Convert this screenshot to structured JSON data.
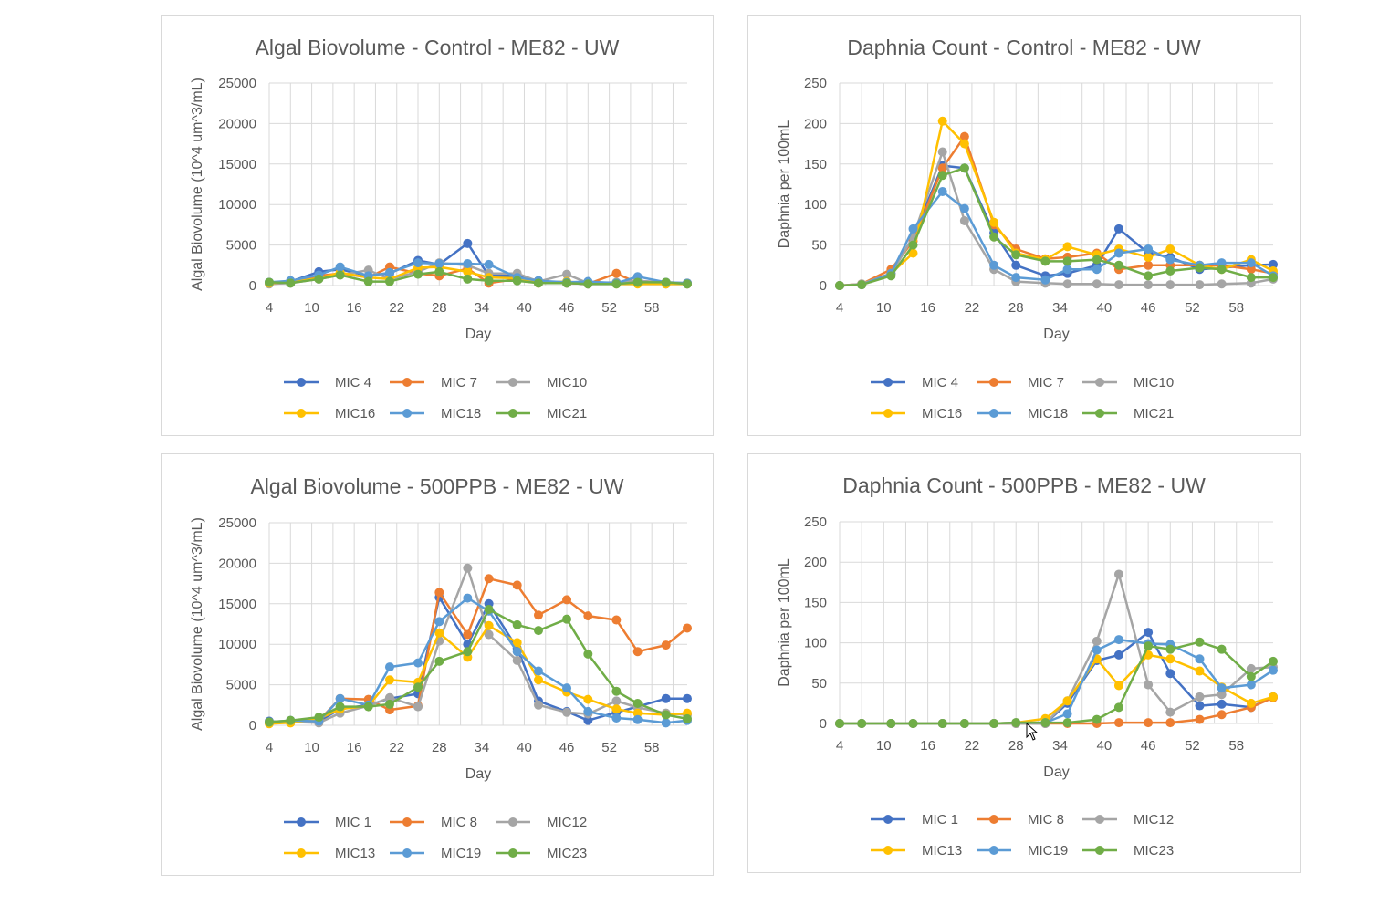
{
  "chart_data": [
    {
      "type": "line",
      "title": "Algal Biovolume - Control - ME82 - UW",
      "xlabel": "Day",
      "ylabel": "Algal Biovolume (10^4 um^3/mL)",
      "xlim": [
        4,
        63
      ],
      "ylim": [
        0,
        25000
      ],
      "yticks": [
        0,
        5000,
        10000,
        15000,
        20000,
        25000
      ],
      "xticks": [
        4,
        10,
        16,
        22,
        28,
        34,
        40,
        46,
        52,
        58
      ],
      "x": [
        4,
        7,
        11,
        14,
        18,
        21,
        25,
        28,
        32,
        35,
        39,
        42,
        46,
        49,
        53,
        56,
        60,
        63
      ],
      "grid": true,
      "legend_position": "bottom",
      "series": [
        {
          "name": "MIC 4",
          "color": "#4472C4",
          "values": [
            400,
            500,
            1700,
            2000,
            1200,
            1500,
            3100,
            2600,
            5200,
            1200,
            1200,
            600,
            300,
            200,
            300,
            300,
            200,
            200
          ]
        },
        {
          "name": "MIC 7",
          "color": "#ED7D31",
          "values": [
            300,
            400,
            1200,
            1500,
            1000,
            2300,
            1500,
            1200,
            2100,
            300,
            800,
            300,
            300,
            200,
            1500,
            300,
            300,
            300
          ]
        },
        {
          "name": "MIC10",
          "color": "#A5A5A5",
          "values": [
            200,
            300,
            800,
            1300,
            1900,
            800,
            1700,
            2800,
            2500,
            1500,
            1500,
            500,
            1400,
            300,
            400,
            600,
            400,
            300
          ]
        },
        {
          "name": "MIC16",
          "color": "#FFC000",
          "values": [
            300,
            400,
            900,
            1600,
            1000,
            800,
            2200,
            2300,
            1700,
            1000,
            900,
            400,
            500,
            300,
            200,
            200,
            200,
            200
          ]
        },
        {
          "name": "MIC18",
          "color": "#5B9BD5",
          "values": [
            400,
            600,
            1300,
            2300,
            1200,
            1600,
            2800,
            2700,
            2700,
            2600,
            1000,
            600,
            400,
            500,
            300,
            1100,
            400,
            300
          ]
        },
        {
          "name": "MIC21",
          "color": "#70AD47",
          "values": [
            400,
            300,
            800,
            1300,
            500,
            500,
            1400,
            1700,
            800,
            600,
            600,
            300,
            300,
            200,
            200,
            400,
            400,
            200
          ]
        }
      ]
    },
    {
      "type": "line",
      "title": "Daphnia Count - Control - ME82 - UW",
      "xlabel": "Day",
      "ylabel": "Daphnia per 100mL",
      "xlim": [
        4,
        63
      ],
      "ylim": [
        0,
        250
      ],
      "yticks": [
        0,
        50,
        100,
        150,
        200,
        250
      ],
      "xticks": [
        4,
        10,
        16,
        22,
        28,
        34,
        40,
        46,
        52,
        58
      ],
      "x": [
        4,
        7,
        11,
        14,
        18,
        21,
        25,
        28,
        32,
        35,
        39,
        42,
        46,
        49,
        53,
        56,
        60,
        63
      ],
      "grid": true,
      "legend_position": "bottom",
      "series": [
        {
          "name": "MIC 4",
          "color": "#4472C4",
          "values": [
            0,
            1,
            15,
            60,
            148,
            145,
            65,
            25,
            12,
            15,
            25,
            70,
            40,
            35,
            20,
            22,
            25,
            26
          ]
        },
        {
          "name": "MIC 7",
          "color": "#ED7D31",
          "values": [
            0,
            2,
            20,
            55,
            145,
            184,
            75,
            45,
            33,
            35,
            40,
            20,
            25,
            25,
            25,
            25,
            20,
            15
          ]
        },
        {
          "name": "MIC10",
          "color": "#A5A5A5",
          "values": [
            0,
            2,
            15,
            60,
            165,
            80,
            20,
            5,
            3,
            2,
            2,
            1,
            1,
            1,
            1,
            2,
            3,
            8
          ]
        },
        {
          "name": "MIC16",
          "color": "#FFC000",
          "values": [
            0,
            1,
            15,
            40,
            203,
            175,
            78,
            40,
            32,
            48,
            38,
            45,
            35,
            45,
            25,
            20,
            32,
            18
          ]
        },
        {
          "name": "MIC18",
          "color": "#5B9BD5",
          "values": [
            0,
            1,
            15,
            70,
            116,
            95,
            25,
            10,
            7,
            20,
            20,
            40,
            45,
            32,
            25,
            28,
            28,
            12
          ]
        },
        {
          "name": "MIC21",
          "color": "#70AD47",
          "values": [
            0,
            1,
            12,
            50,
            136,
            145,
            60,
            38,
            30,
            30,
            32,
            25,
            12,
            18,
            22,
            20,
            10,
            10
          ]
        }
      ]
    },
    {
      "type": "line",
      "title": "Algal Biovolume - 500PPB - ME82  - UW",
      "xlabel": "Day",
      "ylabel": "Algal Biovolume (10^4 um^3/mL)",
      "xlim": [
        4,
        63
      ],
      "ylim": [
        0,
        25000
      ],
      "yticks": [
        0,
        5000,
        10000,
        15000,
        20000,
        25000
      ],
      "xticks": [
        4,
        10,
        16,
        22,
        28,
        34,
        40,
        46,
        52,
        58
      ],
      "x": [
        4,
        7,
        11,
        14,
        18,
        21,
        25,
        28,
        32,
        35,
        39,
        42,
        46,
        49,
        53,
        56,
        60,
        63
      ],
      "grid": true,
      "legend_position": "bottom",
      "series": [
        {
          "name": "MIC 1",
          "color": "#4472C4",
          "values": [
            500,
            400,
            500,
            2000,
            2500,
            3300,
            3900,
            15800,
            10000,
            15000,
            9500,
            3000,
            1700,
            600,
            1600,
            2300,
            3300,
            3300
          ]
        },
        {
          "name": "MIC 8",
          "color": "#ED7D31",
          "values": [
            300,
            400,
            600,
            3300,
            3200,
            1900,
            2400,
            16400,
            11200,
            18100,
            17300,
            13600,
            15500,
            13500,
            13000,
            9100,
            9900,
            12000
          ]
        },
        {
          "name": "MIC12",
          "color": "#A5A5A5",
          "values": [
            400,
            400,
            300,
            1500,
            2400,
            3400,
            2300,
            10400,
            19400,
            11200,
            8000,
            2500,
            1600,
            1400,
            3000,
            2200,
            1500,
            1300
          ]
        },
        {
          "name": "MIC13",
          "color": "#FFC000",
          "values": [
            200,
            300,
            800,
            2000,
            2400,
            5600,
            5300,
            11400,
            8400,
            12300,
            10200,
            5600,
            4100,
            3200,
            2000,
            1500,
            1300,
            1500
          ]
        },
        {
          "name": "MIC19",
          "color": "#5B9BD5",
          "values": [
            400,
            600,
            500,
            3300,
            2500,
            7200,
            7700,
            12800,
            15700,
            14100,
            9100,
            6700,
            4600,
            1700,
            900,
            700,
            300,
            600
          ]
        },
        {
          "name": "MIC23",
          "color": "#70AD47",
          "values": [
            400,
            600,
            1000,
            2300,
            2300,
            2600,
            4700,
            7900,
            9100,
            14300,
            12400,
            11700,
            13100,
            8800,
            4200,
            2700,
            1300,
            800
          ]
        }
      ]
    },
    {
      "type": "line",
      "title": "Daphnia Count - 500PPB - ME82 - UW",
      "xlabel": "Day",
      "ylabel": "Daphnia per 100mL",
      "xlim": [
        4,
        63
      ],
      "ylim": [
        0,
        250
      ],
      "yticks": [
        0,
        50,
        100,
        150,
        200,
        250
      ],
      "xticks": [
        4,
        10,
        16,
        22,
        28,
        34,
        40,
        46,
        52,
        58
      ],
      "x": [
        4,
        7,
        11,
        14,
        18,
        21,
        25,
        28,
        32,
        35,
        39,
        42,
        46,
        49,
        53,
        56,
        60,
        63
      ],
      "grid": true,
      "legend_position": "bottom",
      "series": [
        {
          "name": "MIC 1",
          "color": "#4472C4",
          "values": [
            0,
            0,
            0,
            0,
            0,
            0,
            0,
            0,
            0,
            25,
            78,
            85,
            113,
            62,
            22,
            24,
            20,
            33
          ]
        },
        {
          "name": "MIC 8",
          "color": "#ED7D31",
          "values": [
            0,
            0,
            0,
            0,
            0,
            0,
            0,
            0,
            0,
            0,
            0,
            1,
            1,
            1,
            5,
            11,
            20,
            32
          ]
        },
        {
          "name": "MIC12",
          "color": "#A5A5A5",
          "values": [
            0,
            0,
            0,
            0,
            0,
            0,
            0,
            0,
            0,
            28,
            102,
            185,
            48,
            14,
            33,
            36,
            68,
            70
          ]
        },
        {
          "name": "MIC13",
          "color": "#FFC000",
          "values": [
            0,
            0,
            0,
            0,
            0,
            0,
            0,
            1,
            6,
            28,
            80,
            47,
            85,
            80,
            65,
            45,
            25,
            33
          ]
        },
        {
          "name": "MIC19",
          "color": "#5B9BD5",
          "values": [
            0,
            0,
            0,
            0,
            0,
            0,
            0,
            1,
            1,
            12,
            91,
            104,
            99,
            98,
            80,
            44,
            48,
            66
          ]
        },
        {
          "name": "MIC23",
          "color": "#70AD47",
          "values": [
            0,
            0,
            0,
            0,
            0,
            0,
            0,
            1,
            1,
            1,
            5,
            20,
            96,
            92,
            101,
            92,
            58,
            77
          ]
        }
      ]
    }
  ]
}
